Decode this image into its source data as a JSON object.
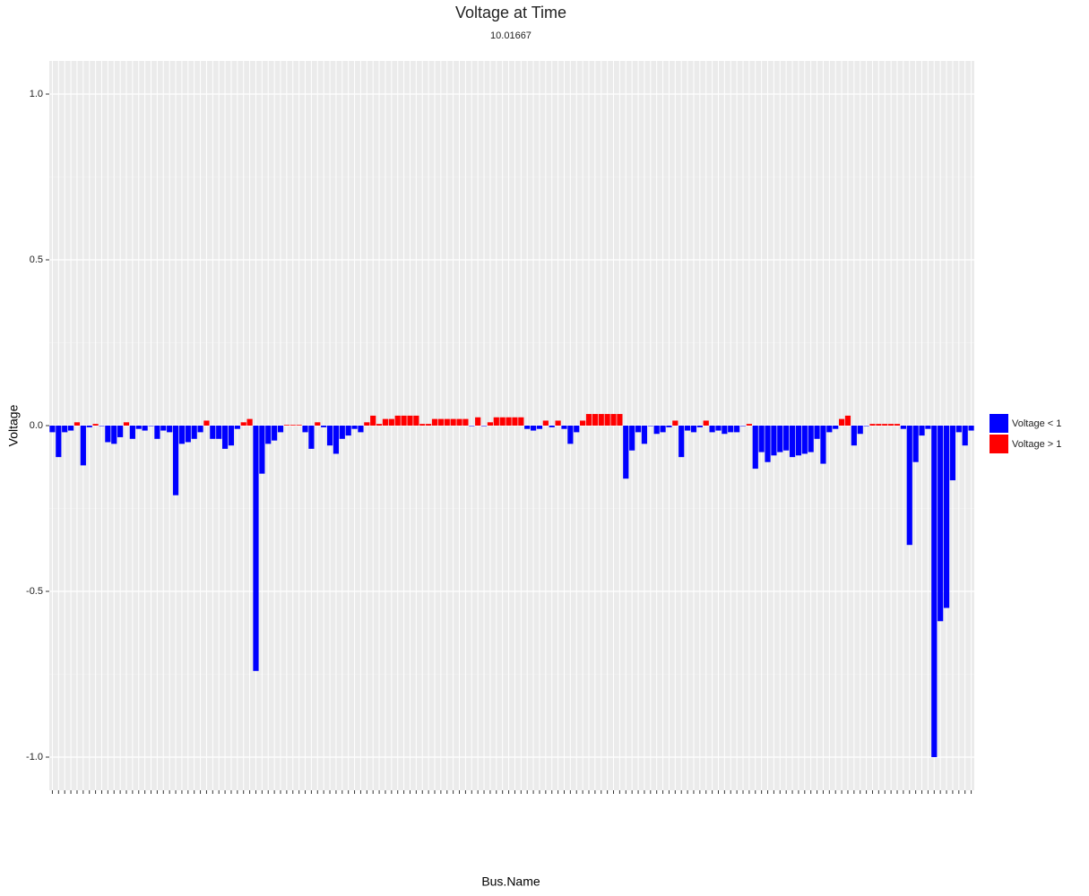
{
  "chart_data": {
    "type": "bar",
    "title": "Voltage at Time",
    "subtitle": "10.01667",
    "x_label": "Bus.Name",
    "y_label": "Voltage",
    "categories": [
      null,
      null,
      null,
      null,
      null,
      null,
      null,
      null,
      null,
      null,
      null,
      null,
      null,
      null,
      null,
      null,
      null,
      null,
      null,
      null,
      null,
      null,
      null,
      null,
      null,
      null,
      null,
      null,
      null,
      null,
      null,
      null,
      null,
      null,
      null,
      null,
      null,
      null,
      null,
      null,
      null,
      null,
      null,
      null,
      null,
      null,
      null,
      null,
      null,
      null,
      null,
      null,
      null,
      null,
      null,
      null,
      null,
      null,
      null,
      null,
      null,
      null,
      null,
      null,
      null,
      null,
      null,
      null,
      null,
      null,
      null,
      null,
      null,
      null,
      null,
      null,
      null,
      null,
      null,
      null,
      null,
      null,
      null,
      null,
      null,
      null,
      null,
      null,
      null,
      null,
      null,
      null,
      null,
      null,
      null,
      null,
      null,
      null,
      null,
      null,
      null,
      null,
      null,
      null,
      null,
      null,
      null,
      null,
      null,
      null,
      null,
      null,
      null,
      null,
      null,
      null,
      null,
      null,
      null,
      null,
      null,
      null,
      null,
      null,
      null,
      null,
      null,
      null,
      null,
      null,
      null,
      null,
      null,
      null,
      null,
      null,
      null,
      null,
      null,
      null,
      null,
      null,
      null,
      null,
      null,
      null,
      null,
      null,
      null,
      null
    ],
    "series": [
      {
        "name": "Voltage < 1",
        "color": "#0000ff",
        "values": [
          -0.02,
          -0.095,
          -0.02,
          -0.015,
          null,
          -0.12,
          -0.005,
          null,
          0,
          -0.05,
          -0.055,
          -0.035,
          null,
          -0.04,
          -0.01,
          -0.015,
          0,
          -0.04,
          -0.015,
          -0.02,
          -0.21,
          -0.055,
          -0.05,
          -0.04,
          -0.02,
          null,
          -0.04,
          -0.04,
          -0.07,
          -0.06,
          -0.01,
          null,
          null,
          -0.74,
          -0.145,
          -0.055,
          -0.045,
          -0.02,
          null,
          null,
          null,
          -0.02,
          -0.07,
          null,
          -0.005,
          -0.06,
          -0.085,
          -0.04,
          -0.03,
          -0.01,
          -0.02,
          null,
          null,
          null,
          null,
          null,
          null,
          null,
          null,
          null,
          null,
          null,
          null,
          null,
          null,
          null,
          null,
          null,
          0,
          null,
          0,
          null,
          null,
          null,
          null,
          null,
          null,
          -0.01,
          -0.015,
          -0.01,
          null,
          -0.005,
          null,
          -0.01,
          -0.055,
          -0.02,
          null,
          null,
          null,
          null,
          null,
          null,
          null,
          -0.16,
          -0.075,
          -0.02,
          -0.055,
          0,
          -0.025,
          -0.02,
          -0.005,
          null,
          -0.095,
          -0.015,
          -0.02,
          -0.005,
          null,
          -0.02,
          -0.015,
          -0.025,
          -0.02,
          -0.02,
          0,
          null,
          -0.13,
          -0.08,
          -0.11,
          -0.09,
          -0.08,
          -0.075,
          -0.095,
          -0.09,
          -0.085,
          -0.08,
          -0.04,
          -0.115,
          -0.02,
          -0.01,
          null,
          null,
          -0.06,
          -0.025,
          0,
          null,
          null,
          null,
          null,
          null,
          -0.01,
          -0.36,
          -0.11,
          -0.03,
          -0.01,
          -1.0,
          -0.59,
          -0.55,
          -0.165,
          -0.02,
          -0.06,
          -0.015
        ]
      },
      {
        "name": "Voltage > 1",
        "color": "#ff0000",
        "values": [
          null,
          null,
          null,
          null,
          0.01,
          null,
          null,
          0.005,
          null,
          null,
          null,
          null,
          0.01,
          null,
          null,
          null,
          null,
          null,
          null,
          null,
          null,
          null,
          null,
          null,
          null,
          0.015,
          null,
          null,
          null,
          null,
          null,
          0.01,
          0.02,
          null,
          null,
          null,
          null,
          null,
          0.002,
          0.002,
          0.002,
          null,
          null,
          0.01,
          null,
          null,
          null,
          null,
          null,
          null,
          null,
          0.01,
          0.03,
          0.005,
          0.02,
          0.02,
          0.03,
          0.03,
          0.03,
          0.03,
          0.005,
          0.005,
          0.02,
          0.02,
          0.02,
          0.02,
          0.02,
          0.02,
          null,
          0.025,
          null,
          0.01,
          0.025,
          0.025,
          0.025,
          0.025,
          0.025,
          null,
          null,
          null,
          0.015,
          null,
          0.015,
          null,
          null,
          null,
          0.015,
          0.035,
          0.035,
          0.035,
          0.035,
          0.035,
          0.035,
          null,
          null,
          null,
          null,
          null,
          null,
          null,
          null,
          0.015,
          null,
          null,
          null,
          null,
          0.015,
          null,
          null,
          null,
          null,
          null,
          null,
          0.005,
          null,
          null,
          null,
          null,
          null,
          null,
          null,
          null,
          null,
          null,
          null,
          null,
          null,
          null,
          0.02,
          0.03,
          null,
          null,
          null,
          0.005,
          0.005,
          0.005,
          0.005,
          0.005,
          null,
          null,
          null,
          null,
          null,
          null,
          null,
          null,
          null,
          null,
          null,
          null
        ]
      }
    ],
    "ylim": [
      -1.1,
      1.1
    ],
    "yticks": [
      {
        "value": -1,
        "label": "-1.0"
      },
      -0.5,
      {
        "value": 0,
        "label": "0.0"
      },
      0.5,
      {
        "value": 1,
        "label": "1.0"
      }
    ],
    "grid": true,
    "legend": "right"
  }
}
